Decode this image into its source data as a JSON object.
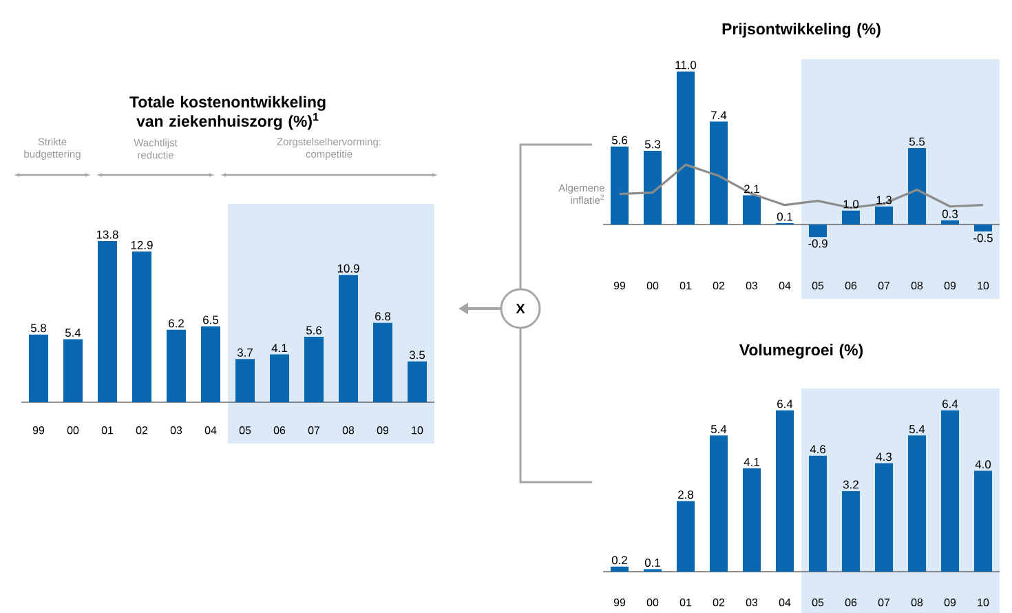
{
  "chart_data": [
    {
      "type": "bar",
      "title": "Totale kostenontwikkeling van ziekenhuiszorg (%)$^{1}$",
      "categories": [
        "99",
        "00",
        "01",
        "02",
        "03",
        "04",
        "05",
        "06",
        "07",
        "08",
        "09",
        "10"
      ],
      "values": [
        5.8,
        5.4,
        13.8,
        12.9,
        6.2,
        6.5,
        3.7,
        4.1,
        5.6,
        10.9,
        6.8,
        3.5
      ],
      "color": "#0a68b0",
      "data_labels": true,
      "bands": [
        {
          "axis": "x",
          "from": "05",
          "to": "10",
          "color": "#dce9f6"
        }
      ],
      "annotations": [
        "Strikte budgettering",
        "Wachtlijst reductie",
        "Zorgstelselhervorming: competitie",
        "X"
      ]
    },
    {
      "type": "bar",
      "title": "Prijsontwikkeling (%)",
      "categories": [
        "99",
        "00",
        "01",
        "02",
        "03",
        "04",
        "05",
        "06",
        "07",
        "08",
        "09",
        "10"
      ],
      "series": [
        {
          "type": "bar",
          "color": "#0a68b0",
          "values": [
            5.6,
            5.3,
            11.0,
            7.4,
            2.1,
            0.1,
            -0.9,
            1.0,
            1.3,
            5.5,
            0.3,
            -0.5
          ],
          "value_labels": [
            "5.6",
            "5.3",
            "11.0",
            "7.4",
            "2.1",
            "0.1",
            "-0.9",
            "1.0",
            "1.3",
            "5.5",
            "0.3",
            "-0.5"
          ]
        },
        {
          "type": "line",
          "name": "Algemene inflatie$^{2}$",
          "color": "#8c8c8c",
          "values": [
            2.2,
            2.3,
            4.3,
            3.5,
            2.2,
            1.4,
            1.7,
            1.2,
            1.5,
            2.5,
            1.3,
            1.4
          ]
        }
      ],
      "bands": [
        {
          "axis": "x",
          "from": "05",
          "to": "10",
          "color": "#dce9f6"
        }
      ]
    },
    {
      "type": "bar",
      "title": "Volumegroei (%)",
      "categories": [
        "99",
        "00",
        "01",
        "02",
        "03",
        "04",
        "05",
        "06",
        "07",
        "08",
        "09",
        "10"
      ],
      "values": [
        0.2,
        0.1,
        2.8,
        5.4,
        4.1,
        6.4,
        4.6,
        3.2,
        4.3,
        5.4,
        6.4,
        4.0
      ],
      "value_labels": [
        "0.2",
        "0.1",
        "2.8",
        "5.4",
        "4.1",
        "6.4",
        "4.6",
        "3.2",
        "4.3",
        "5.4",
        "6.4",
        "4.0"
      ],
      "color": "#0a68b0",
      "bands": [
        {
          "axis": "x",
          "from": "05",
          "to": "10",
          "color": "#dce9f6"
        }
      ]
    }
  ]
}
